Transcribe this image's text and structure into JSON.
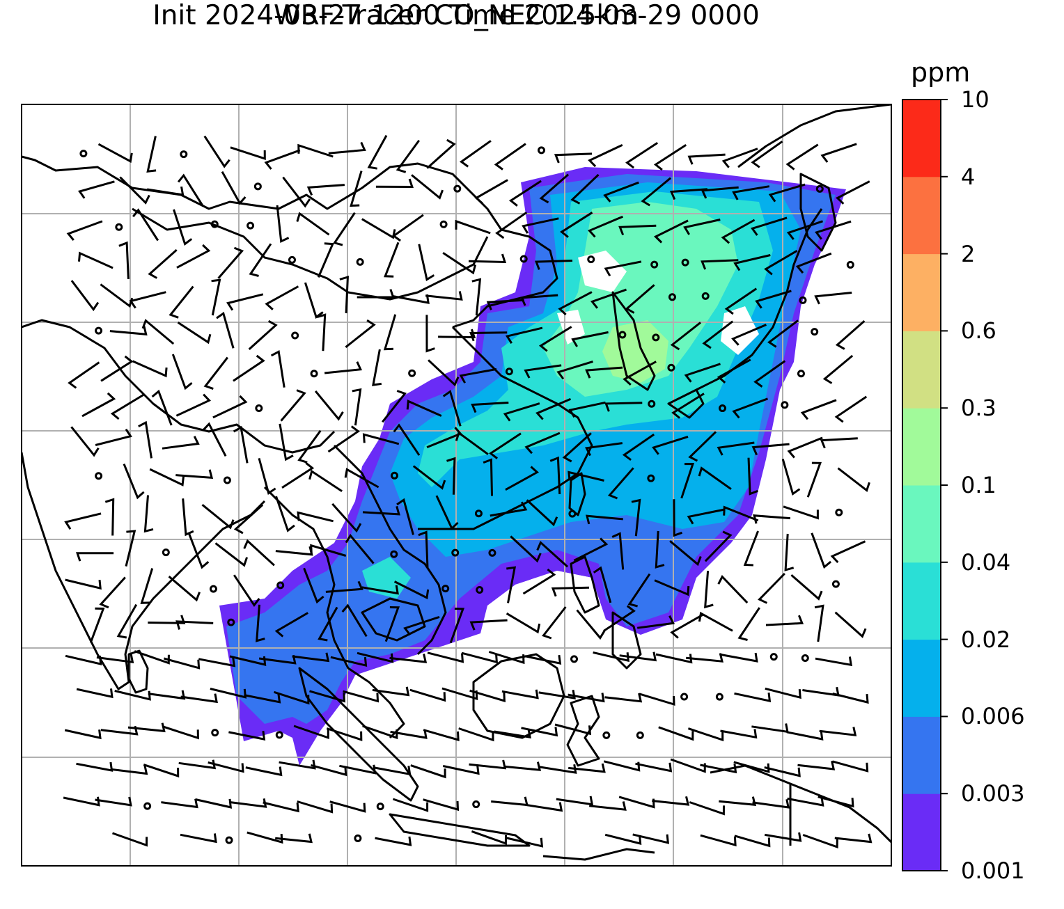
{
  "title": {
    "line1": "WRF-Tracer CO_NEC 1.5km",
    "line2": "Init 2024-03-27 1200 Time 2024-03-29 0000"
  },
  "colorbar": {
    "unit": "ppm",
    "levels": [
      "0.001",
      "0.003",
      "0.006",
      "0.02",
      "0.04",
      "0.1",
      "0.3",
      "0.6",
      "2",
      "4",
      "10"
    ],
    "colors": [
      "#6a2cf6",
      "#3575f0",
      "#05b0ec",
      "#2adfd6",
      "#6af7be",
      "#a1fa9a",
      "#d1e083",
      "#fdb063",
      "#fc7140",
      "#fc2a19"
    ]
  },
  "map": {
    "region": "East / Southeast Asia",
    "features": [
      "coastlines",
      "country-borders",
      "gridlines",
      "wind-barbs",
      "co-tracer-concentration"
    ]
  }
}
